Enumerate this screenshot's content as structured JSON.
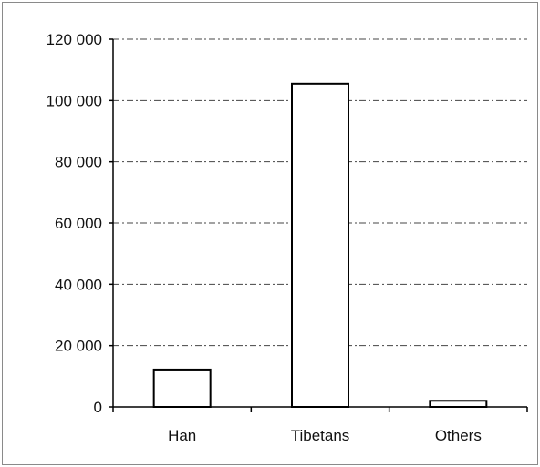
{
  "chart_data": {
    "type": "bar",
    "title": "",
    "xlabel": "",
    "ylabel": "",
    "categories": [
      "Han",
      "Tibetans",
      "Others"
    ],
    "values": [
      12200,
      105500,
      2000
    ],
    "ylim": [
      0,
      120000
    ],
    "yticks": [
      0,
      20000,
      40000,
      60000,
      80000,
      100000,
      120000
    ],
    "ytick_labels": [
      "0",
      "20 000",
      "40 000",
      "60 000",
      "80 000",
      "100 000",
      "120 000"
    ],
    "grid": true,
    "legend": "none",
    "colors": {
      "bar_fill": "#ffffff",
      "bar_stroke": "#000000",
      "axis": "#000000",
      "grid": "#444444",
      "frame": "#8a8a8a"
    }
  }
}
